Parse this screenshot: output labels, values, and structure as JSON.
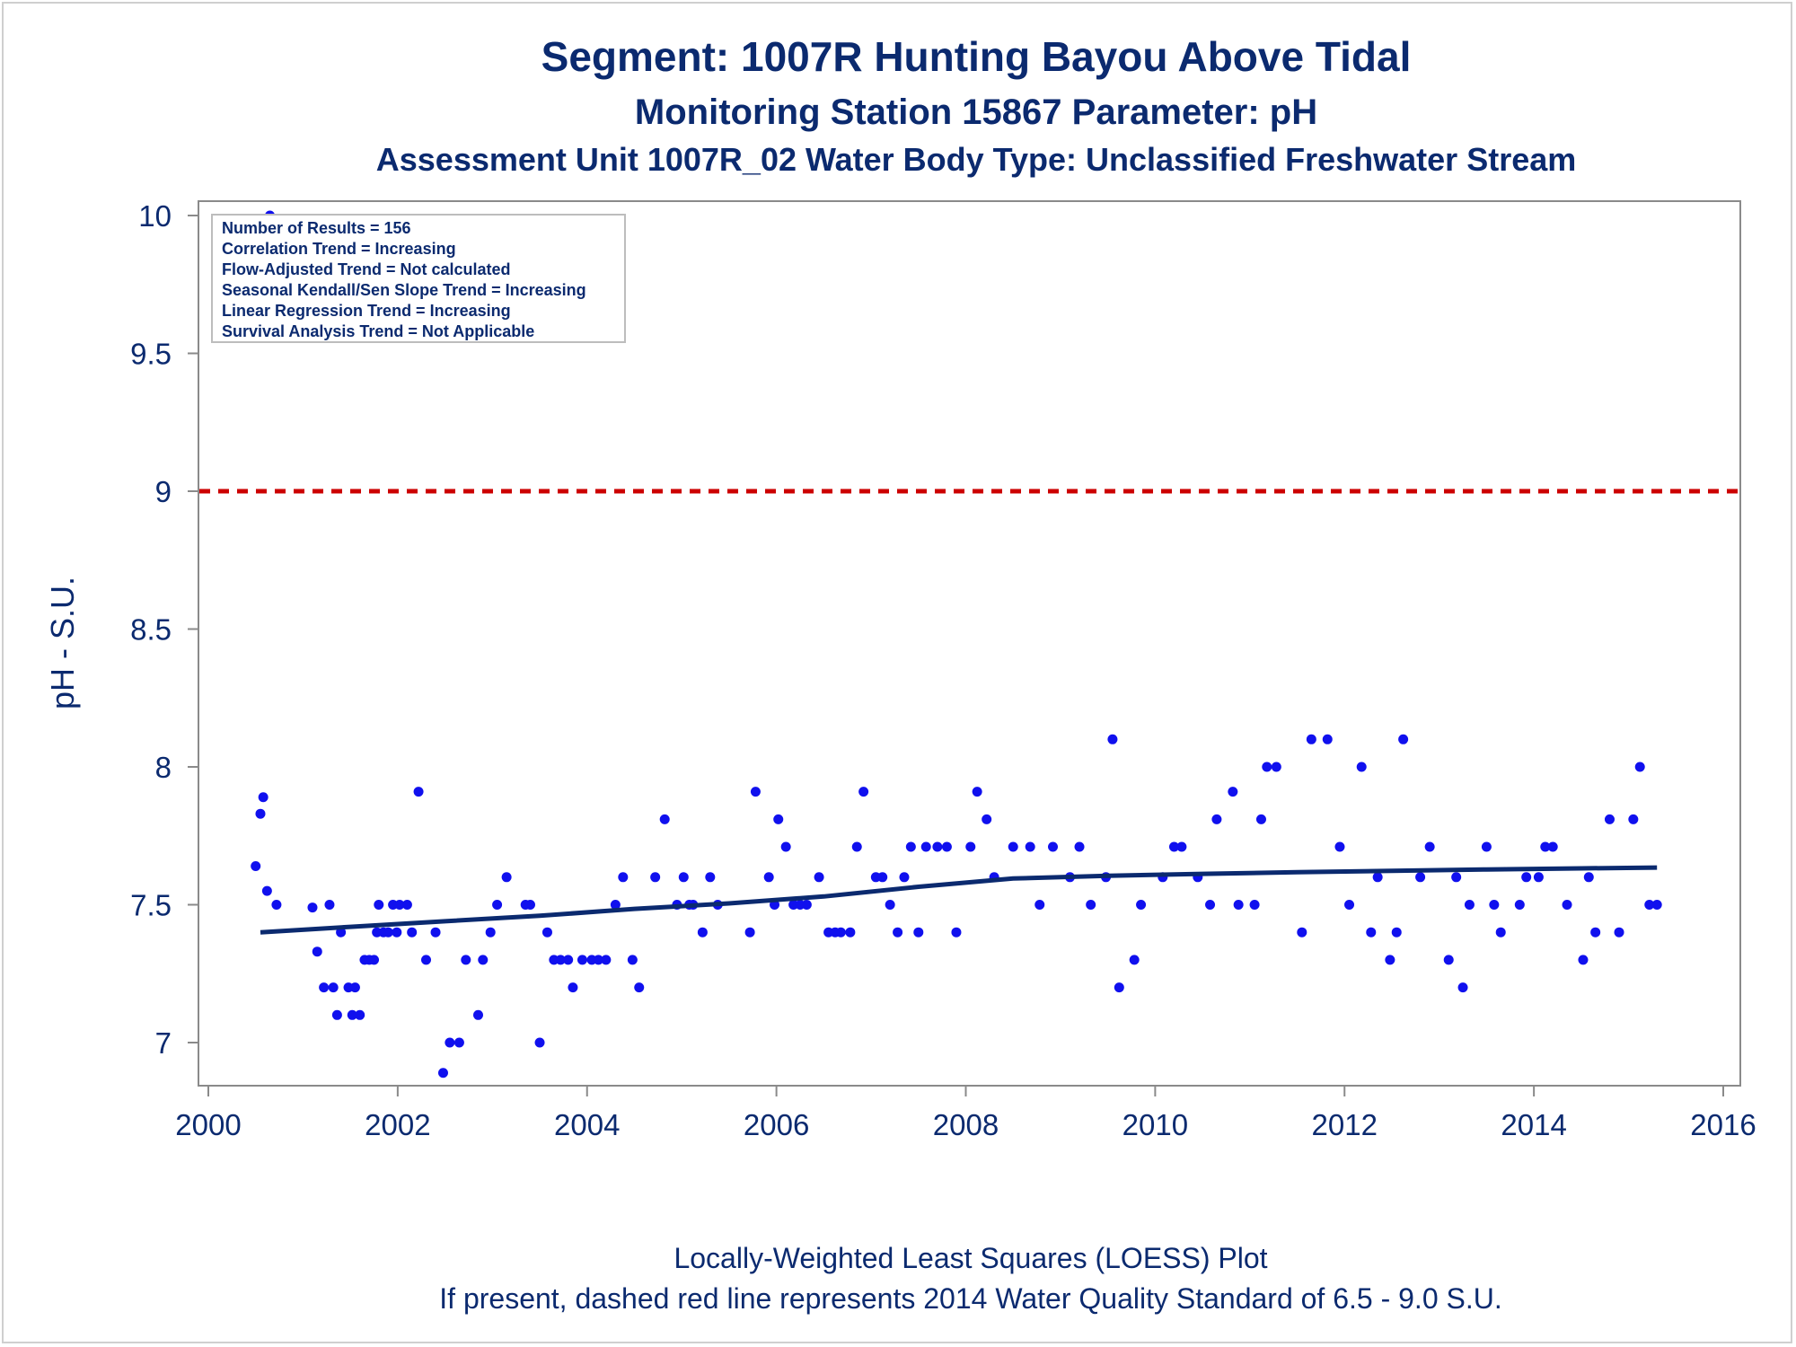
{
  "chart_data": {
    "type": "scatter",
    "title": "Segment: 1007R  Hunting Bayou Above Tidal",
    "subtitle": "Monitoring Station 15867 Parameter: pH",
    "subtitle2": "Assessment Unit 1007R_02   Water Body Type: Unclassified Freshwater Stream",
    "xlabel": "",
    "ylabel": "pH - S.U.",
    "xlim": [
      2000,
      2016
    ],
    "ylim": [
      6.85,
      10.03
    ],
    "xticks": [
      2000,
      2002,
      2004,
      2006,
      2008,
      2010,
      2012,
      2014,
      2016
    ],
    "yticks": [
      7,
      7.5,
      8,
      8.5,
      9,
      9.5,
      10
    ],
    "x_tick_labels": [
      "2000",
      "2002",
      "2004",
      "2006",
      "2008",
      "2010",
      "2012",
      "2014",
      "2016"
    ],
    "y_tick_labels": [
      "7",
      "7.5",
      "8",
      "8.5",
      "9",
      "9.5",
      "10"
    ],
    "grid": false,
    "standard_line": {
      "value": 9.0,
      "color": "#cc0000",
      "style": "dashed"
    },
    "points_color": "#1010ee",
    "loess_color": "#0b2a6f",
    "inset": [
      "Number of Results = 156",
      "Correlation Trend = Increasing",
      "Flow-Adjusted Trend = Not calculated",
      "Seasonal Kendall/Sen Slope Trend = Increasing",
      "Linear Regression Trend = Increasing",
      "Survival Analysis Trend = Not Applicable"
    ],
    "footnote1": "Locally-Weighted Least Squares (LOESS) Plot",
    "footnote2": "If present, dashed red line represents 2014 Water Quality Standard of 6.5 - 9.0 S.U.",
    "points": [
      [
        2000.5,
        7.64
      ],
      [
        2000.55,
        7.83
      ],
      [
        2000.58,
        7.89
      ],
      [
        2000.62,
        7.55
      ],
      [
        2000.65,
        10.0
      ],
      [
        2000.72,
        7.5
      ],
      [
        2001.1,
        7.49
      ],
      [
        2001.15,
        7.33
      ],
      [
        2001.22,
        7.2
      ],
      [
        2001.28,
        7.5
      ],
      [
        2001.32,
        7.2
      ],
      [
        2001.36,
        7.1
      ],
      [
        2001.4,
        7.4
      ],
      [
        2001.48,
        7.2
      ],
      [
        2001.52,
        7.1
      ],
      [
        2001.55,
        7.2
      ],
      [
        2001.6,
        7.1
      ],
      [
        2001.65,
        7.3
      ],
      [
        2001.7,
        7.3
      ],
      [
        2001.75,
        7.3
      ],
      [
        2001.78,
        7.4
      ],
      [
        2001.8,
        7.5
      ],
      [
        2001.85,
        7.4
      ],
      [
        2001.9,
        7.4
      ],
      [
        2001.95,
        7.5
      ],
      [
        2001.99,
        7.4
      ],
      [
        2002.02,
        7.5
      ],
      [
        2002.1,
        7.5
      ],
      [
        2002.15,
        7.4
      ],
      [
        2002.22,
        7.91
      ],
      [
        2002.3,
        7.3
      ],
      [
        2002.4,
        7.4
      ],
      [
        2002.48,
        6.89
      ],
      [
        2002.55,
        7.0
      ],
      [
        2002.65,
        7.0
      ],
      [
        2002.72,
        7.3
      ],
      [
        2002.85,
        7.1
      ],
      [
        2002.9,
        7.3
      ],
      [
        2002.98,
        7.4
      ],
      [
        2003.05,
        7.5
      ],
      [
        2003.15,
        7.6
      ],
      [
        2003.35,
        7.5
      ],
      [
        2003.4,
        7.5
      ],
      [
        2003.5,
        7.0
      ],
      [
        2003.58,
        7.4
      ],
      [
        2003.65,
        7.3
      ],
      [
        2003.72,
        7.3
      ],
      [
        2003.8,
        7.3
      ],
      [
        2003.85,
        7.2
      ],
      [
        2003.95,
        7.3
      ],
      [
        2004.05,
        7.3
      ],
      [
        2004.12,
        7.3
      ],
      [
        2004.2,
        7.3
      ],
      [
        2004.3,
        7.5
      ],
      [
        2004.38,
        7.6
      ],
      [
        2004.48,
        7.3
      ],
      [
        2004.55,
        7.2
      ],
      [
        2004.72,
        7.6
      ],
      [
        2004.82,
        7.81
      ],
      [
        2004.95,
        7.5
      ],
      [
        2005.02,
        7.6
      ],
      [
        2005.08,
        7.5
      ],
      [
        2005.12,
        7.5
      ],
      [
        2005.22,
        7.4
      ],
      [
        2005.3,
        7.6
      ],
      [
        2005.38,
        7.5
      ],
      [
        2005.72,
        7.4
      ],
      [
        2005.78,
        7.91
      ],
      [
        2005.92,
        7.6
      ],
      [
        2005.98,
        7.5
      ],
      [
        2006.02,
        7.81
      ],
      [
        2006.1,
        7.71
      ],
      [
        2006.18,
        7.5
      ],
      [
        2006.25,
        7.5
      ],
      [
        2006.32,
        7.5
      ],
      [
        2006.45,
        7.6
      ],
      [
        2006.55,
        7.4
      ],
      [
        2006.62,
        7.4
      ],
      [
        2006.68,
        7.4
      ],
      [
        2006.78,
        7.4
      ],
      [
        2006.85,
        7.71
      ],
      [
        2006.92,
        7.91
      ],
      [
        2007.05,
        7.6
      ],
      [
        2007.12,
        7.6
      ],
      [
        2007.2,
        7.5
      ],
      [
        2007.28,
        7.4
      ],
      [
        2007.35,
        7.6
      ],
      [
        2007.42,
        7.71
      ],
      [
        2007.5,
        7.4
      ],
      [
        2007.58,
        7.71
      ],
      [
        2007.7,
        7.71
      ],
      [
        2007.8,
        7.71
      ],
      [
        2007.9,
        7.4
      ],
      [
        2008.05,
        7.71
      ],
      [
        2008.12,
        7.91
      ],
      [
        2008.22,
        7.81
      ],
      [
        2008.3,
        7.6
      ],
      [
        2008.5,
        7.71
      ],
      [
        2008.68,
        7.71
      ],
      [
        2008.78,
        7.5
      ],
      [
        2008.92,
        7.71
      ],
      [
        2009.1,
        7.6
      ],
      [
        2009.2,
        7.71
      ],
      [
        2009.32,
        7.5
      ],
      [
        2009.48,
        7.6
      ],
      [
        2009.55,
        8.1
      ],
      [
        2009.62,
        7.2
      ],
      [
        2009.78,
        7.3
      ],
      [
        2009.85,
        7.5
      ],
      [
        2010.08,
        7.6
      ],
      [
        2010.2,
        7.71
      ],
      [
        2010.28,
        7.71
      ],
      [
        2010.45,
        7.6
      ],
      [
        2010.58,
        7.5
      ],
      [
        2010.65,
        7.81
      ],
      [
        2010.82,
        7.91
      ],
      [
        2010.88,
        7.5
      ],
      [
        2011.05,
        7.5
      ],
      [
        2011.12,
        7.81
      ],
      [
        2011.18,
        8.0
      ],
      [
        2011.28,
        8.0
      ],
      [
        2011.55,
        7.4
      ],
      [
        2011.65,
        8.1
      ],
      [
        2011.82,
        8.1
      ],
      [
        2011.95,
        7.71
      ],
      [
        2012.05,
        7.5
      ],
      [
        2012.18,
        8.0
      ],
      [
        2012.28,
        7.4
      ],
      [
        2012.35,
        7.6
      ],
      [
        2012.48,
        7.3
      ],
      [
        2012.55,
        7.4
      ],
      [
        2012.62,
        8.1
      ],
      [
        2012.8,
        7.6
      ],
      [
        2012.9,
        7.71
      ],
      [
        2013.1,
        7.3
      ],
      [
        2013.18,
        7.6
      ],
      [
        2013.25,
        7.2
      ],
      [
        2013.32,
        7.5
      ],
      [
        2013.5,
        7.71
      ],
      [
        2013.58,
        7.5
      ],
      [
        2013.65,
        7.4
      ],
      [
        2013.85,
        7.5
      ],
      [
        2013.92,
        7.6
      ],
      [
        2014.05,
        7.6
      ],
      [
        2014.12,
        7.71
      ],
      [
        2014.2,
        7.71
      ],
      [
        2014.35,
        7.5
      ],
      [
        2014.52,
        7.3
      ],
      [
        2014.58,
        7.6
      ],
      [
        2014.65,
        7.4
      ],
      [
        2014.8,
        7.81
      ],
      [
        2014.9,
        7.4
      ],
      [
        2015.05,
        7.81
      ],
      [
        2015.12,
        8.0
      ],
      [
        2015.22,
        7.5
      ],
      [
        2015.3,
        7.5
      ]
    ],
    "loess": [
      [
        2000.55,
        7.4
      ],
      [
        2001.5,
        7.42
      ],
      [
        2002.5,
        7.44
      ],
      [
        2003.5,
        7.46
      ],
      [
        2004.5,
        7.485
      ],
      [
        2005.5,
        7.505
      ],
      [
        2006.5,
        7.53
      ],
      [
        2007.5,
        7.565
      ],
      [
        2008.5,
        7.595
      ],
      [
        2009.5,
        7.605
      ],
      [
        2010.5,
        7.612
      ],
      [
        2011.5,
        7.618
      ],
      [
        2012.5,
        7.623
      ],
      [
        2013.5,
        7.628
      ],
      [
        2014.5,
        7.632
      ],
      [
        2015.3,
        7.635
      ]
    ]
  }
}
